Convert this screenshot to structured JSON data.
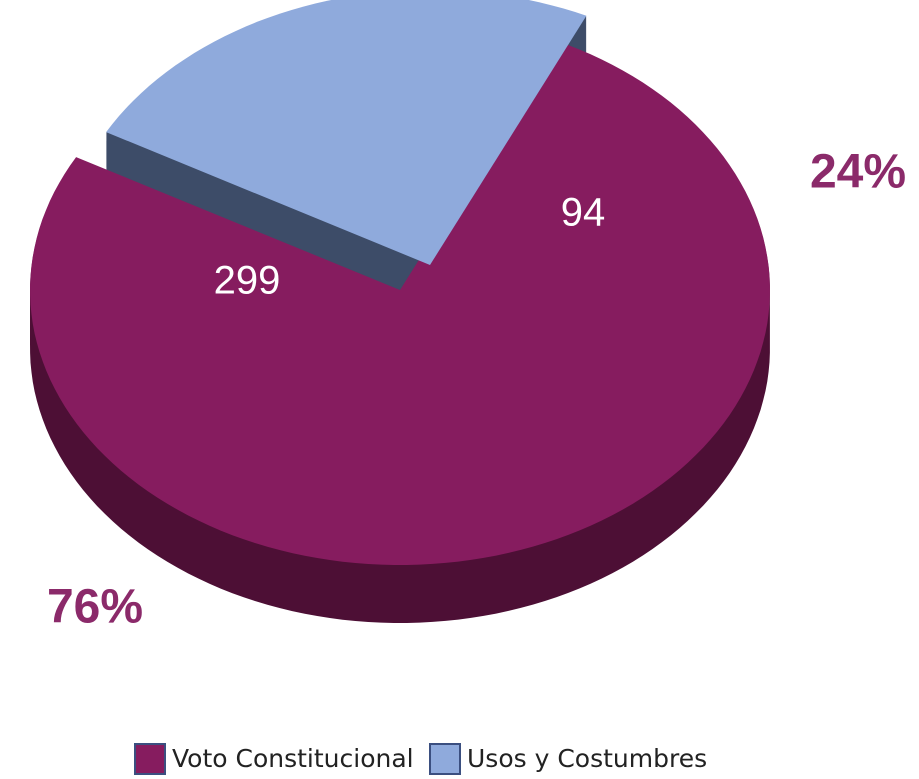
{
  "chart_data": {
    "type": "pie",
    "categories": [
      "Voto Constitucional",
      "Usos y Costumbres"
    ],
    "values": [
      299,
      94
    ],
    "percentages": [
      76,
      24
    ],
    "percentage_labels": [
      "76%",
      "24%"
    ],
    "colors": [
      "#861c5f",
      "#8faadc"
    ],
    "side_colors": [
      "#4d0f35",
      "#3d4c68"
    ],
    "legend": "bottom"
  }
}
